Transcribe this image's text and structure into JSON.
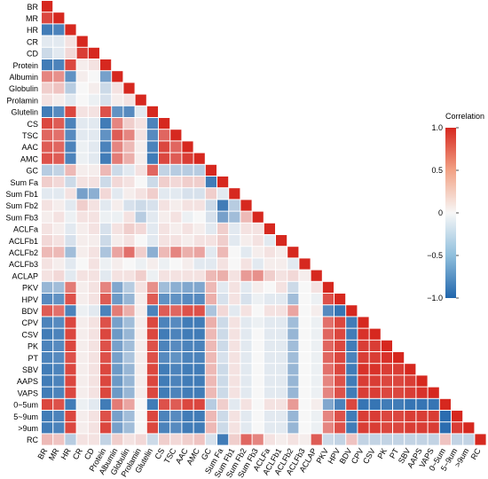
{
  "chart_data": {
    "type": "heatmap",
    "variables": [
      "BR",
      "MR",
      "HR",
      "CR",
      "CD",
      "Protein",
      "Albumin",
      "Globulin",
      "Prolamin",
      "Glutelin",
      "CS",
      "TSC",
      "AAC",
      "AMC",
      "GC",
      "Sum Fa",
      "Sum Fb1",
      "Sum Fb2",
      "Sum Fb3",
      "ACLFa",
      "ACLFb1",
      "ACLFb2",
      "ACLFb3",
      "ACLAP",
      "PKV",
      "HPV",
      "BDV",
      "CPV",
      "CSV",
      "PK",
      "PT",
      "SBV",
      "AAPS",
      "VAPS",
      "0~5um",
      "5~9um",
      ">9um",
      "RC"
    ],
    "legend": {
      "title": "Correlation",
      "ticks": [
        1.0,
        0.5,
        0.0,
        -0.5,
        -1.0
      ],
      "tick_labels": [
        "1.0",
        "0.5",
        "0",
        "−0.5",
        "−1.0"
      ],
      "range": [
        -1,
        1
      ],
      "colors": {
        "negative": "#2166ac",
        "zero": "#f7f7f7",
        "positive": "#d6281f"
      }
    },
    "cell_values_approx": [
      [
        1.0
      ],
      [
        0.85,
        1.0
      ],
      [
        -0.85,
        -0.8,
        1.0
      ],
      [
        -0.1,
        -0.1,
        0.1,
        1.0
      ],
      [
        -0.2,
        -0.1,
        0.15,
        0.9,
        1.0
      ],
      [
        -0.85,
        -0.8,
        0.85,
        0.05,
        0.1,
        1.0
      ],
      [
        0.55,
        0.5,
        -0.7,
        0.05,
        0.0,
        -0.6,
        1.0
      ],
      [
        0.2,
        0.25,
        -0.3,
        0.0,
        0.05,
        -0.2,
        0.1,
        1.0
      ],
      [
        0.1,
        0.05,
        -0.1,
        0.0,
        -0.05,
        -0.15,
        0.05,
        0.1,
        1.0
      ],
      [
        -0.85,
        -0.75,
        0.85,
        0.1,
        0.1,
        0.8,
        -0.7,
        -0.75,
        -0.1,
        1.0
      ],
      [
        0.85,
        0.75,
        -0.8,
        -0.1,
        -0.1,
        -0.85,
        0.55,
        0.2,
        0.1,
        -0.8,
        1.0
      ],
      [
        0.7,
        0.65,
        -0.75,
        -0.1,
        -0.1,
        -0.7,
        0.75,
        0.55,
        0.1,
        -0.75,
        0.7,
        1.0
      ],
      [
        0.75,
        0.7,
        -0.8,
        -0.05,
        -0.1,
        -0.8,
        0.55,
        0.3,
        0.05,
        -0.8,
        0.85,
        0.7,
        1.0
      ],
      [
        0.8,
        0.75,
        -0.8,
        -0.05,
        -0.1,
        -0.85,
        0.6,
        0.35,
        0.05,
        -0.85,
        0.85,
        0.75,
        0.9,
        1.0
      ],
      [
        -0.3,
        -0.25,
        0.3,
        0.05,
        0.05,
        0.3,
        -0.2,
        -0.1,
        0.1,
        0.7,
        -0.25,
        -0.3,
        -0.3,
        -0.3,
        1.0
      ],
      [
        0.2,
        0.15,
        -0.2,
        0.1,
        0.1,
        -0.2,
        0.15,
        0.1,
        0.0,
        -0.2,
        0.2,
        0.15,
        0.2,
        0.2,
        -0.85,
        1.0
      ],
      [
        -0.1,
        -0.1,
        0.1,
        -0.6,
        -0.5,
        0.15,
        -0.1,
        0.05,
        0.1,
        0.2,
        -0.1,
        -0.1,
        -0.15,
        -0.15,
        0.2,
        -0.1,
        1.0
      ],
      [
        0.1,
        0.05,
        -0.1,
        0.2,
        0.1,
        -0.1,
        0.05,
        -0.15,
        -0.2,
        -0.15,
        0.1,
        0.05,
        0.1,
        0.1,
        -0.2,
        -0.85,
        -0.3,
        1.0
      ],
      [
        0.05,
        0.1,
        -0.05,
        0.1,
        0.1,
        -0.05,
        -0.05,
        0.1,
        -0.3,
        -0.1,
        0.05,
        0.1,
        -0.05,
        0.0,
        -0.15,
        -0.6,
        -0.4,
        0.3,
        1.0
      ],
      [
        0.1,
        0.05,
        -0.1,
        0.05,
        0.1,
        -0.15,
        0.1,
        0.2,
        0.15,
        -0.1,
        0.1,
        0.05,
        0.1,
        0.05,
        -0.1,
        0.2,
        -0.1,
        0.1,
        0.1,
        1.0
      ],
      [
        0.15,
        0.1,
        -0.15,
        0.05,
        0.05,
        -0.2,
        0.05,
        0.1,
        0.0,
        -0.1,
        0.1,
        0.1,
        0.05,
        0.1,
        0.1,
        0.2,
        -0.1,
        0.05,
        0.1,
        -0.1,
        1.0
      ],
      [
        0.3,
        0.3,
        -0.4,
        0.05,
        0.1,
        -0.35,
        0.4,
        0.65,
        0.2,
        -0.5,
        0.3,
        0.55,
        0.35,
        0.4,
        -0.1,
        0.3,
        0.0,
        -0.1,
        0.05,
        0.1,
        0.05,
        1.0
      ],
      [
        0.1,
        0.05,
        -0.1,
        0.0,
        0.1,
        -0.05,
        0.05,
        0.0,
        -0.05,
        0.05,
        -0.05,
        0.0,
        0.05,
        -0.1,
        -0.1,
        0.1,
        0.0,
        0.1,
        -0.1,
        0.05,
        0.05,
        -0.1,
        1.0
      ],
      [
        0.1,
        0.15,
        -0.1,
        0.1,
        0.1,
        -0.1,
        0.1,
        0.1,
        0.2,
        -0.05,
        0.1,
        0.1,
        0.1,
        0.1,
        0.3,
        0.35,
        0.1,
        0.45,
        0.5,
        0.2,
        0.1,
        0.15,
        0.05,
        1.0
      ],
      [
        -0.45,
        -0.4,
        0.6,
        0.05,
        0.1,
        0.55,
        -0.55,
        -0.3,
        0.1,
        0.5,
        -0.4,
        -0.5,
        -0.55,
        -0.55,
        0.3,
        -0.1,
        0.1,
        -0.1,
        0.05,
        0.0,
        0.1,
        -0.2,
        0.0,
        0.1,
        1.0
      ],
      [
        -0.75,
        -0.7,
        0.8,
        0.05,
        0.1,
        0.75,
        -0.65,
        -0.45,
        0.05,
        0.75,
        -0.7,
        -0.7,
        -0.75,
        -0.75,
        0.35,
        -0.15,
        0.1,
        -0.15,
        -0.05,
        -0.1,
        -0.1,
        -0.4,
        0.0,
        -0.05,
        0.8,
        1.0
      ],
      [
        0.75,
        0.65,
        -0.8,
        -0.05,
        -0.1,
        -0.8,
        0.6,
        0.35,
        0.05,
        -0.8,
        0.75,
        0.7,
        0.8,
        0.8,
        -0.35,
        0.15,
        -0.1,
        0.1,
        0.0,
        0.1,
        0.1,
        0.4,
        0.0,
        0.05,
        -0.75,
        -0.9,
        1.0
      ],
      [
        -0.8,
        -0.75,
        0.85,
        0.05,
        0.1,
        0.8,
        -0.6,
        -0.4,
        0.05,
        0.85,
        -0.8,
        -0.75,
        -0.85,
        -0.85,
        0.35,
        -0.2,
        0.1,
        -0.1,
        -0.05,
        -0.1,
        -0.1,
        -0.4,
        0.0,
        -0.05,
        0.65,
        0.85,
        -0.85,
        1.0
      ],
      [
        -0.85,
        -0.8,
        0.85,
        0.05,
        0.1,
        0.85,
        -0.65,
        -0.45,
        0.05,
        0.85,
        -0.85,
        -0.8,
        -0.85,
        -0.85,
        0.3,
        -0.2,
        0.1,
        -0.1,
        0.0,
        -0.1,
        -0.1,
        -0.45,
        0.0,
        -0.05,
        0.7,
        0.85,
        -0.85,
        0.95,
        1.0
      ],
      [
        -0.8,
        -0.75,
        0.85,
        0.05,
        0.1,
        0.8,
        -0.6,
        -0.4,
        0.05,
        0.8,
        -0.8,
        -0.75,
        -0.8,
        -0.8,
        0.3,
        -0.2,
        0.1,
        -0.1,
        0.0,
        -0.1,
        -0.1,
        -0.4,
        0.0,
        -0.05,
        0.7,
        0.85,
        -0.85,
        0.9,
        0.9,
        1.0
      ],
      [
        -0.8,
        -0.75,
        0.8,
        0.05,
        0.1,
        0.8,
        -0.6,
        -0.35,
        0.05,
        0.8,
        -0.75,
        -0.7,
        -0.8,
        -0.8,
        0.3,
        -0.15,
        0.1,
        -0.1,
        0.0,
        -0.1,
        -0.1,
        -0.4,
        0.0,
        -0.05,
        0.7,
        0.85,
        -0.8,
        0.9,
        0.9,
        0.95,
        1.0
      ],
      [
        -0.85,
        -0.8,
        0.85,
        0.05,
        0.1,
        0.85,
        -0.65,
        -0.45,
        0.05,
        0.85,
        -0.85,
        -0.8,
        -0.85,
        -0.85,
        0.3,
        -0.2,
        0.1,
        -0.1,
        0.0,
        -0.1,
        -0.1,
        -0.45,
        0.0,
        -0.05,
        0.65,
        0.85,
        -0.85,
        0.95,
        0.95,
        0.9,
        0.9,
        1.0
      ],
      [
        -0.85,
        -0.8,
        0.85,
        0.05,
        0.1,
        0.85,
        -0.65,
        -0.45,
        0.05,
        0.85,
        -0.85,
        -0.8,
        -0.85,
        -0.85,
        0.3,
        -0.2,
        0.1,
        -0.1,
        0.0,
        -0.1,
        -0.1,
        -0.45,
        0.0,
        -0.05,
        0.55,
        0.8,
        -0.85,
        0.9,
        0.9,
        0.85,
        0.85,
        0.9,
        1.0
      ],
      [
        -0.85,
        -0.8,
        0.85,
        0.05,
        0.1,
        0.85,
        -0.65,
        -0.45,
        0.05,
        0.85,
        -0.85,
        -0.8,
        -0.85,
        -0.85,
        0.3,
        -0.2,
        0.1,
        -0.1,
        0.0,
        -0.1,
        -0.1,
        -0.45,
        0.0,
        -0.05,
        0.55,
        0.8,
        -0.85,
        0.9,
        0.9,
        0.85,
        0.85,
        0.9,
        0.95,
        1.0
      ],
      [
        0.85,
        0.8,
        -0.85,
        -0.05,
        -0.1,
        -0.85,
        0.6,
        0.4,
        0.0,
        -0.85,
        0.8,
        0.75,
        0.85,
        0.85,
        -0.3,
        0.2,
        -0.1,
        0.1,
        0.0,
        0.1,
        0.1,
        0.45,
        0.0,
        0.05,
        -0.55,
        -0.8,
        0.85,
        -0.9,
        -0.9,
        -0.85,
        -0.85,
        -0.9,
        -0.9,
        -0.9,
        1.0
      ],
      [
        -0.85,
        -0.8,
        0.85,
        0.05,
        0.1,
        0.8,
        -0.6,
        -0.4,
        0.0,
        0.85,
        -0.8,
        -0.75,
        -0.85,
        -0.85,
        0.3,
        -0.2,
        0.1,
        -0.1,
        0.0,
        -0.1,
        -0.1,
        -0.45,
        0.0,
        -0.05,
        0.55,
        0.8,
        -0.85,
        0.9,
        0.9,
        0.85,
        0.85,
        0.9,
        0.9,
        0.9,
        -0.95,
        1.0
      ],
      [
        -0.85,
        -0.8,
        0.85,
        0.05,
        0.1,
        0.85,
        -0.6,
        -0.4,
        0.0,
        0.85,
        -0.8,
        -0.75,
        -0.85,
        -0.85,
        0.3,
        -0.2,
        0.1,
        -0.1,
        0.0,
        -0.1,
        -0.1,
        -0.45,
        0.0,
        -0.05,
        0.55,
        0.8,
        -0.85,
        0.9,
        0.9,
        0.85,
        0.85,
        0.9,
        0.9,
        0.9,
        -0.95,
        0.9,
        1.0
      ],
      [
        0.3,
        0.25,
        -0.3,
        0.1,
        0.1,
        -0.25,
        0.2,
        0.1,
        0.15,
        -0.2,
        0.2,
        0.15,
        0.2,
        0.25,
        -0.15,
        -0.85,
        0.2,
        0.7,
        0.55,
        0.1,
        0.05,
        0.1,
        0.05,
        0.75,
        -0.2,
        -0.25,
        0.25,
        -0.25,
        -0.25,
        -0.25,
        -0.25,
        -0.25,
        -0.25,
        -0.25,
        0.25,
        -0.25,
        -0.25,
        1.0
      ]
    ]
  }
}
